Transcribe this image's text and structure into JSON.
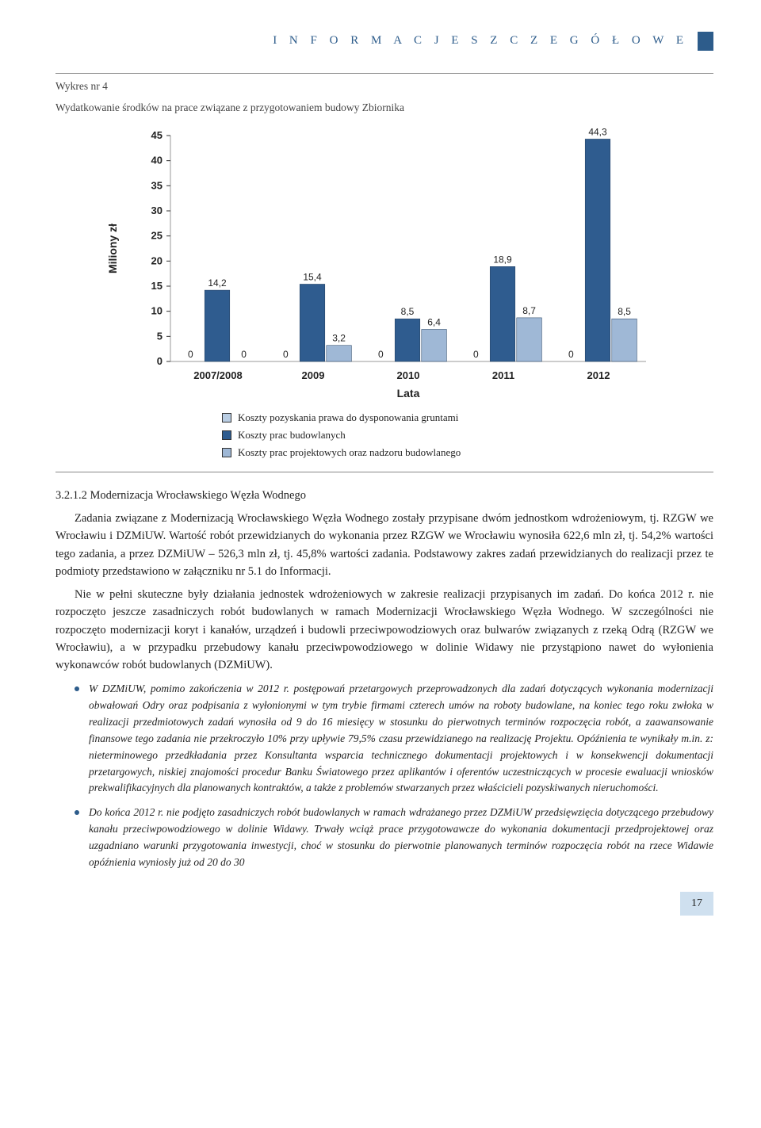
{
  "header": {
    "label": "I N F O R M A C J E   S Z C Z E G Ó Ł O W E"
  },
  "figure": {
    "caption_line1": "Wykres nr 4",
    "caption_line2": "Wydatkowanie środków na prace związane z przygotowaniem budowy Zbiornika"
  },
  "chart": {
    "type": "bar",
    "y_label": "Miliony zł",
    "x_label": "Lata",
    "ylim": [
      0,
      45
    ],
    "ytick_step": 5,
    "yticks": [
      0,
      5,
      10,
      15,
      20,
      25,
      30,
      35,
      40,
      45
    ],
    "categories": [
      "2007/2008",
      "2009",
      "2010",
      "2011",
      "2012"
    ],
    "series": [
      {
        "name": "Koszty pozyskania prawa do dysponowania gruntami",
        "color": "#b9cde3",
        "values": [
          0,
          0,
          0,
          0,
          0
        ]
      },
      {
        "name": "Koszty prac budowlanych",
        "color": "#2f5c8f",
        "values": [
          14.2,
          15.4,
          8.5,
          18.9,
          44.3
        ]
      },
      {
        "name": "Koszty prac projektowych oraz nadzoru budowlanego",
        "color": "#9fb8d6",
        "values": [
          0,
          3.2,
          6.4,
          8.7,
          8.5
        ]
      }
    ],
    "value_labels": {
      "g1": [
        "0",
        "14,2",
        "0"
      ],
      "g2": [
        "0",
        "15,4",
        "3,2"
      ],
      "g3": [
        "0",
        "8,5",
        "6,4"
      ],
      "g4": [
        "0",
        "18,9",
        "8,7"
      ],
      "g5": [
        "0",
        "44,3",
        "8,5"
      ]
    },
    "background_color": "#ffffff",
    "grid_color": "#999999",
    "bar_width": 0.28,
    "title_fontsize": 14,
    "label_fontsize": 13
  },
  "legend": {
    "items": [
      {
        "color": "#b9cde3",
        "label": "Koszty pozyskania prawa do dysponowania gruntami"
      },
      {
        "color": "#2f5c8f",
        "label": "Koszty prac budowlanych"
      },
      {
        "color": "#9fb8d6",
        "label": "Koszty prac projektowych oraz nadzoru budowlanego"
      }
    ]
  },
  "section": {
    "subheading": "3.2.1.2  Modernizacja Wrocławskiego Węzła Wodnego",
    "para1": "Zadania związane z Modernizacją Wrocławskiego Węzła Wodnego zostały przypisane dwóm jednostkom wdrożeniowym, tj. RZGW we Wrocławiu i DZMiUW. Wartość robót przewidzianych do wykonania przez RZGW we Wrocławiu wynosiła 622,6 mln  zł, tj. 54,2% wartości tego zadania, a przez DZMiUW – 526,3 mln  zł, tj. 45,8% wartości zadania. Podstawowy zakres zadań przewidzianych do realizacji przez te podmioty przedstawiono w załączniku nr 5.1 do Informacji.",
    "para2": "Nie w pełni skuteczne były działania jednostek wdrożeniowych w zakresie realizacji przypisanych im zadań. Do końca 2012 r. nie rozpoczęto jeszcze zasadniczych robót budowlanych w ramach Modernizacji Wrocławskiego Węzła Wodnego. W szczególności nie rozpoczęto modernizacji koryt i kanałów, urządzeń i budowli przeciwpowodziowych oraz bulwarów związanych z rzeką Odrą (RZGW we Wrocławiu), a w przypadku przebudowy kanału przeciwpowodziowego w dolinie Widawy nie przystąpiono nawet do wyłonienia wykonawców robót budowlanych (DZMiUW).",
    "bullet1": "W DZMiUW, pomimo zakończenia w 2012 r. postępowań przetargowych przeprowadzonych dla zadań dotyczących wykonania modernizacji obwałowań Odry oraz podpisania z wyłonionymi w tym trybie firmami czterech umów na roboty budowlane, na koniec tego roku zwłoka w realizacji przedmiotowych zadań wynosiła od 9 do 16 miesięcy w stosunku do pierwotnych terminów rozpoczęcia robót, a zaawansowanie finansowe tego zadania nie przekroczyło 10% przy upływie 79,5% czasu przewidzianego na realizację Projektu. Opóźnienia te wynikały m.in. z: nieterminowego przedkładania przez Konsultanta wsparcia technicznego dokumentacji projektowych i w konsekwencji dokumentacji przetargowych, niskiej znajomości procedur Banku Światowego przez aplikantów i oferentów uczestniczących w procesie ewaluacji wniosków prekwalifikacyjnych dla planowanych kontraktów, a także z problemów stwarzanych przez właścicieli pozyskiwanych nieruchomości.",
    "bullet2": "Do końca 2012 r. nie podjęto zasadniczych robót budowlanych w ramach wdrażanego przez DZMiUW przedsięwzięcia dotyczącego przebudowy kanału przeciwpowodziowego w dolinie Widawy. Trwały wciąż prace przygotowawcze do wykonania dokumentacji przedprojektowej oraz uzgadniano warunki przygotowania inwestycji, choć w stosunku do pierwotnie planowanych terminów rozpoczęcia robót na rzece Widawie opóźnienia wyniosły już od 20 do 30"
  },
  "page_number": "17"
}
